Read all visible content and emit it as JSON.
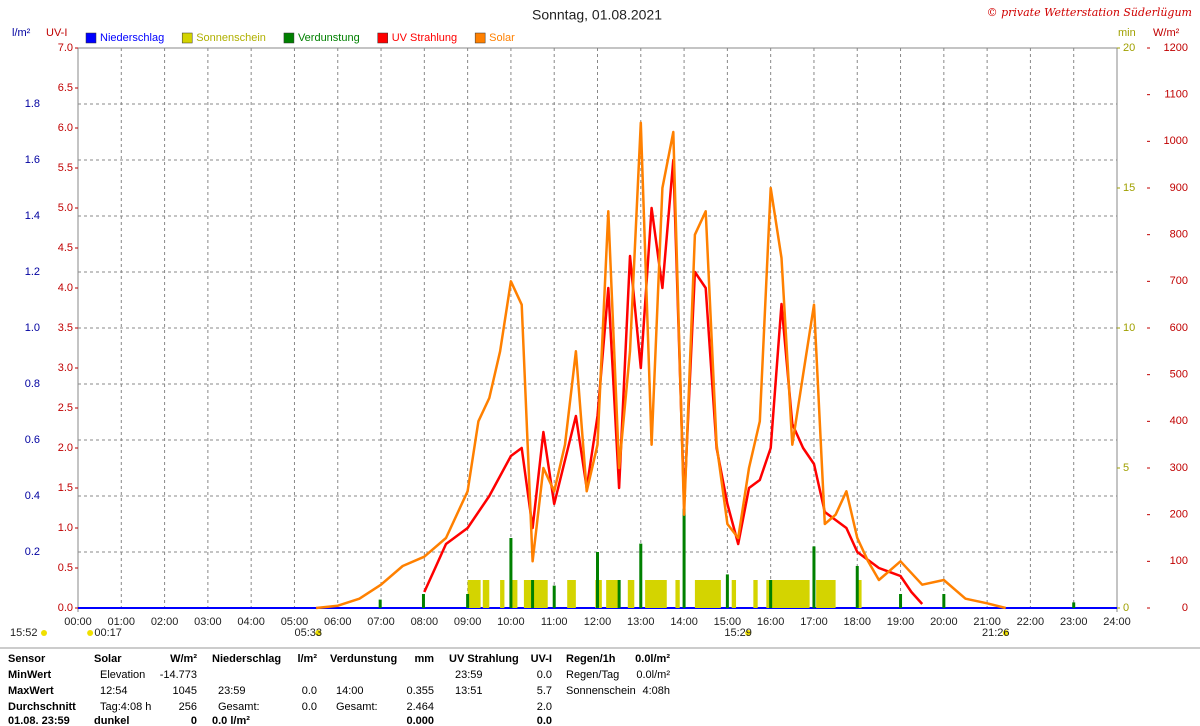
{
  "chart_data": {
    "type": "line",
    "title": "Sonntag, 01.08.2021",
    "credit": "© private Wetterstation Süderlügum",
    "ytitle": "UV-I",
    "y2title": "W/m²",
    "y3title": "l/m²",
    "y4title": "min",
    "xlim": [
      0,
      24
    ],
    "xticks": [
      {
        "value": 0,
        "label": "00:00"
      },
      {
        "value": 1,
        "label": "01:00"
      },
      {
        "value": 2,
        "label": "02:00"
      },
      {
        "value": 3,
        "label": "03:00"
      },
      {
        "value": 4,
        "label": "04:00"
      },
      {
        "value": 5,
        "label": "05:00"
      },
      {
        "value": 6,
        "label": "06:00"
      },
      {
        "value": 7,
        "label": "07:00"
      },
      {
        "value": 8,
        "label": "08:00"
      },
      {
        "value": 9,
        "label": "09:00"
      },
      {
        "value": 10,
        "label": "10:00"
      },
      {
        "value": 11,
        "label": "11:00"
      },
      {
        "value": 12,
        "label": "12:00"
      },
      {
        "value": 13,
        "label": "13:00"
      },
      {
        "value": 14,
        "label": "14:00"
      },
      {
        "value": 15,
        "label": "15:00"
      },
      {
        "value": 16,
        "label": "16:00"
      },
      {
        "value": 17,
        "label": "17:00"
      },
      {
        "value": 18,
        "label": "18:00"
      },
      {
        "value": 19,
        "label": "19:00"
      },
      {
        "value": 20,
        "label": "20:00"
      },
      {
        "value": 21,
        "label": "21:00"
      },
      {
        "value": 22,
        "label": "22:00"
      },
      {
        "value": 23,
        "label": "23:00"
      },
      {
        "value": 24,
        "label": "24:00"
      }
    ],
    "ylim": [
      0,
      7
    ],
    "yticks": [
      {
        "value": 0,
        "label": "0.0"
      },
      0.5,
      {
        "value": 1,
        "label": "1.0"
      },
      1.5,
      {
        "value": 2,
        "label": "2.0"
      },
      2.5,
      {
        "value": 3,
        "label": "3.0"
      },
      3.5,
      {
        "value": 4,
        "label": "4.0"
      },
      4.5,
      {
        "value": 5,
        "label": "5.0"
      },
      5.5,
      {
        "value": 6,
        "label": "6.0"
      },
      6.5,
      {
        "value": 7,
        "label": "7.0"
      }
    ],
    "y2lim": [
      0,
      1200
    ],
    "y2ticks": [
      0,
      100,
      200,
      300,
      400,
      500,
      600,
      700,
      800,
      900,
      1000,
      1100,
      1200
    ],
    "y3lim": [
      0,
      2
    ],
    "y3ticks": [
      0.2,
      0.4,
      0.6,
      0.8,
      {
        "value": 1,
        "label": "1.0"
      },
      1.2,
      1.4,
      1.6,
      1.8
    ],
    "y4lim": [
      0,
      20
    ],
    "y4ticks": [
      0,
      5,
      10,
      15,
      20
    ],
    "grid": true,
    "series": [
      {
        "name": "Niederschlag",
        "color": "#0000ff",
        "axis": "y3",
        "kind": "line",
        "x": [
          0,
          24
        ],
        "values": [
          0,
          0
        ]
      },
      {
        "name": "Sonnenschein",
        "color": "#d4d400",
        "axis": "y4",
        "kind": "span",
        "x": [
          9.0,
          9.35,
          9.75,
          10.0,
          10.3,
          11.3,
          11.95,
          12.2,
          12.7,
          13.1,
          13.8,
          14.25,
          15.1,
          15.6,
          15.9,
          17.05,
          18.0
        ],
        "x_end": [
          9.3,
          9.5,
          9.85,
          10.15,
          10.85,
          11.5,
          12.1,
          12.5,
          12.85,
          13.6,
          13.9,
          14.85,
          15.2,
          15.7,
          16.9,
          17.5,
          18.1
        ],
        "values": [
          1,
          1,
          1,
          1,
          1,
          1,
          1,
          1,
          1,
          1,
          1,
          1,
          1,
          1,
          1,
          1,
          1
        ]
      },
      {
        "name": "Verdunstung",
        "color": "#008000",
        "axis": "y3",
        "kind": "spike",
        "x": [
          6.98,
          7.98,
          9.0,
          10.0,
          10.5,
          11.0,
          12.0,
          12.5,
          13.0,
          14.0,
          15.0,
          16.0,
          17.0,
          18.0,
          19.0,
          20.0,
          23.0
        ],
        "values": [
          0.03,
          0.05,
          0.05,
          0.25,
          0.1,
          0.08,
          0.2,
          0.1,
          0.23,
          0.355,
          0.12,
          0.1,
          0.22,
          0.15,
          0.05,
          0.05,
          0.02
        ]
      },
      {
        "name": "UV Strahlung",
        "color": "#ff0000",
        "axis": "y",
        "kind": "line",
        "x": [
          8,
          8.25,
          8.5,
          9,
          9.5,
          10,
          10.25,
          10.5,
          10.75,
          11,
          11.5,
          11.75,
          12,
          12.25,
          12.5,
          12.75,
          13,
          13.25,
          13.5,
          13.75,
          14,
          14.25,
          14.5,
          14.75,
          15,
          15.25,
          15.5,
          15.75,
          16,
          16.25,
          16.5,
          16.75,
          17,
          17.25,
          17.5,
          17.75,
          18,
          18.5,
          19,
          19.25,
          19.5
        ],
        "values": [
          0.2,
          0.5,
          0.8,
          1.0,
          1.4,
          1.9,
          2.0,
          1.0,
          2.2,
          1.3,
          2.4,
          1.5,
          2.4,
          4.0,
          1.5,
          4.4,
          3.0,
          5.0,
          4.0,
          5.6,
          1.3,
          4.2,
          4.0,
          2.0,
          1.3,
          0.8,
          1.5,
          1.6,
          2.0,
          3.8,
          2.3,
          2.0,
          1.8,
          1.2,
          1.1,
          1.0,
          0.7,
          0.5,
          0.4,
          0.2,
          0.05
        ]
      },
      {
        "name": "Solar",
        "color": "#ff8000",
        "axis": "y2",
        "kind": "line",
        "x": [
          5.5,
          6,
          6.5,
          7,
          7.5,
          8,
          8.5,
          9,
          9.25,
          9.5,
          9.75,
          10,
          10.25,
          10.5,
          10.75,
          11,
          11.25,
          11.5,
          11.75,
          12,
          12.25,
          12.5,
          12.75,
          13,
          13.25,
          13.5,
          13.75,
          14,
          14.25,
          14.5,
          14.75,
          15,
          15.25,
          15.5,
          15.75,
          16,
          16.25,
          16.5,
          16.75,
          17,
          17.25,
          17.5,
          17.75,
          18,
          18.25,
          18.5,
          18.75,
          19,
          19.5,
          20,
          20.5,
          21,
          21.43
        ],
        "values": [
          0,
          5,
          20,
          50,
          90,
          110,
          150,
          250,
          400,
          450,
          550,
          700,
          650,
          100,
          300,
          250,
          350,
          550,
          250,
          350,
          850,
          300,
          550,
          1040,
          350,
          900,
          1020,
          200,
          800,
          850,
          350,
          180,
          150,
          300,
          400,
          900,
          750,
          350,
          500,
          650,
          180,
          200,
          250,
          150,
          100,
          60,
          80,
          100,
          50,
          60,
          20,
          10,
          0
        ]
      }
    ],
    "annotations": [
      {
        "text": "15:52",
        "x": 0.0
      },
      {
        "text": "00:17",
        "x": 0.28
      },
      {
        "text": "05:33",
        "x": 5.55
      },
      {
        "text": "15:29",
        "x": 15.48
      },
      {
        "text": "21:26",
        "x": 21.43
      }
    ]
  },
  "stats": {
    "columns": [
      {
        "cells": [
          "Sensor",
          "MinWert",
          "MaxWert",
          "Durchschnitt",
          "01.08. 23:59"
        ]
      },
      {
        "cells": [
          "Solar",
          "Elevation",
          "12:54",
          "Tag:4:08 h",
          "dunkel"
        ]
      },
      {
        "cells": [
          "W/m²",
          "-14.773",
          "1045",
          "256",
          "0"
        ]
      },
      {
        "cells": [
          "Niederschlag",
          null,
          "23:59",
          "Gesamt:",
          "0.0 l/m²"
        ]
      },
      {
        "cells": [
          "l/m²",
          null,
          "0.0",
          "0.0",
          null
        ]
      },
      {
        "cells": [
          "Verdunstung",
          null,
          "14:00",
          "Gesamt:",
          null
        ]
      },
      {
        "cells": [
          "mm",
          null,
          "0.355",
          "2.464",
          "0.000"
        ]
      },
      {
        "cells": [
          "UV Strahlung",
          "23:59",
          "13:51",
          null,
          null
        ]
      },
      {
        "cells": [
          "UV-I",
          "0.0",
          "5.7",
          "2.0",
          "0.0"
        ]
      },
      {
        "cells": [
          "Regen/1h",
          "Regen/Tag",
          "Sonnenschein",
          null,
          null
        ]
      },
      {
        "cells": [
          "0.0l/m²",
          "0.0l/m²",
          "4:08h",
          null,
          null
        ]
      }
    ]
  }
}
